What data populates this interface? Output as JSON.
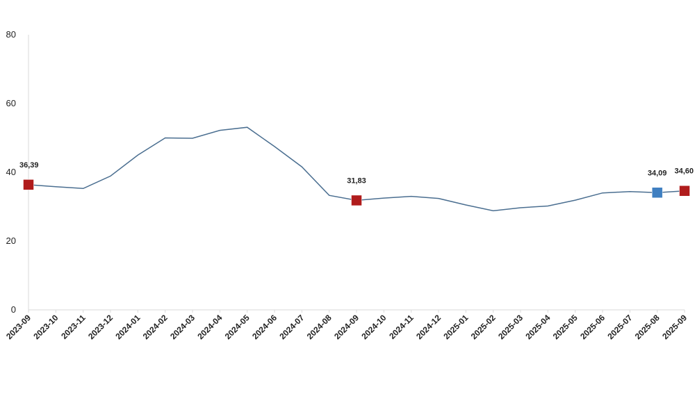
{
  "chart_data": {
    "type": "line",
    "title": "",
    "xlabel": "",
    "ylabel": "",
    "ylim": [
      0,
      80
    ],
    "yticks": [
      "0",
      "20",
      "40",
      "60",
      "80"
    ],
    "grid": false,
    "categories": [
      "2023-09",
      "2023-10",
      "2023-11",
      "2023-12",
      "2024-01",
      "2024-02",
      "2024-03",
      "2024-04",
      "2024-05",
      "2024-06",
      "2024-07",
      "2024-08",
      "2024-09",
      "2024-10",
      "2024-11",
      "2024-12",
      "2025-01",
      "2025-02",
      "2025-03",
      "2025-04",
      "2025-05",
      "2025-06",
      "2025-07",
      "2025-08",
      "2025-09"
    ],
    "series": [
      {
        "values": [
          36.39,
          35.8,
          35.3,
          38.9,
          45.0,
          50.0,
          49.9,
          52.2,
          53.1,
          47.5,
          41.6,
          33.3,
          31.83,
          32.5,
          33.0,
          32.4,
          30.5,
          28.8,
          29.7,
          30.2,
          31.9,
          34.0,
          34.4,
          34.09,
          34.6
        ],
        "color": "#4a6e90"
      }
    ],
    "highlights": [
      {
        "index": 0,
        "label": "36,39",
        "color": "#b01c1c"
      },
      {
        "index": 12,
        "label": "31,83",
        "color": "#b01c1c"
      },
      {
        "index": 23,
        "label": "34,09",
        "color": "#3f7fc1"
      },
      {
        "index": 24,
        "label": "34,60",
        "color": "#b01c1c"
      }
    ]
  }
}
